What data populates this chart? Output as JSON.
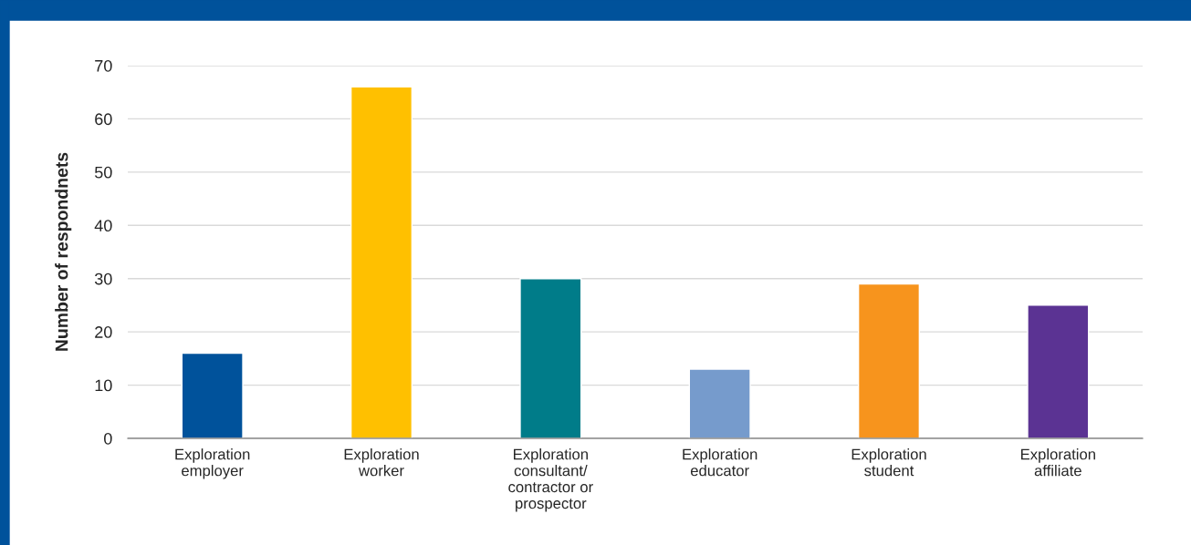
{
  "chart_data": {
    "type": "bar",
    "ylabel": "Number of respondnets",
    "categories": [
      "Exploration\nemployer",
      "Exploration\nworker",
      "Exploration\nconsultant/\ncontractor or\nprospector",
      "Exploration\neducator",
      "Exploration\nstudent",
      "Exploration\naffiliate"
    ],
    "values": [
      16,
      66,
      30,
      13,
      29,
      25
    ],
    "colors": [
      "#00529b",
      "#ffc000",
      "#007c89",
      "#769bcc",
      "#f7941d",
      "#5b3393"
    ],
    "ylim": [
      0,
      70
    ],
    "yticks": [
      0,
      10,
      20,
      30,
      40,
      50,
      60,
      70
    ],
    "grid": "y",
    "legend": false
  }
}
